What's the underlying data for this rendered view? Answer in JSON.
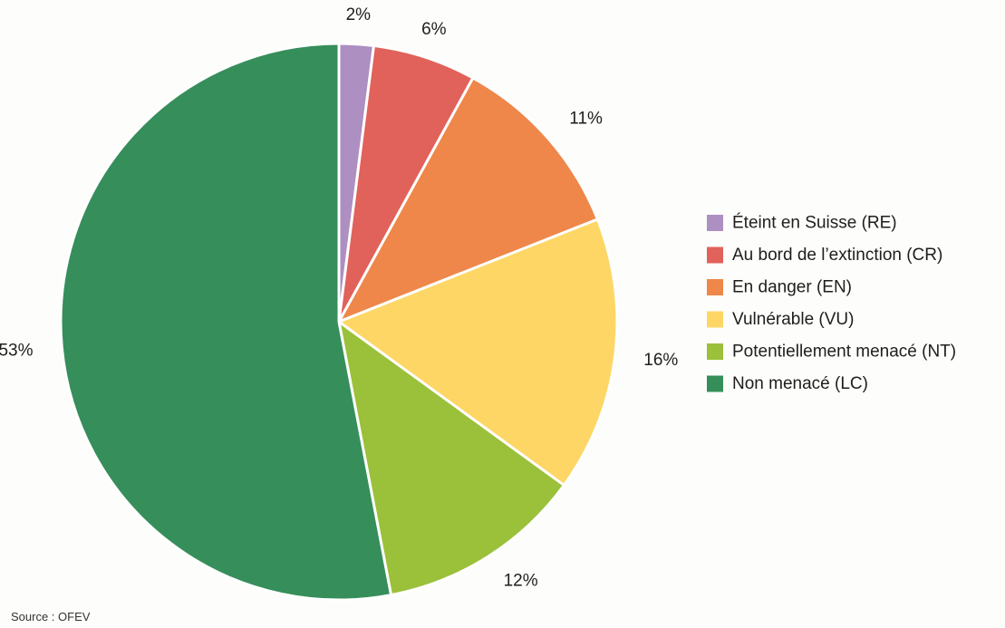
{
  "chart_data": {
    "type": "pie",
    "title": "",
    "unit": "%",
    "start_angle_deg": 0,
    "direction": "clockwise",
    "legend_position": "right",
    "slices": [
      {
        "label": "Éteint en Suisse (RE)",
        "value": 2,
        "value_label": "2%",
        "color": "#ad8fc2"
      },
      {
        "label": "Au bord de l’extinction (CR)",
        "value": 6,
        "value_label": "6%",
        "color": "#e0625a"
      },
      {
        "label": "En danger (EN)",
        "value": 11,
        "value_label": "11%",
        "color": "#ee8749"
      },
      {
        "label": "Vulnérable (VU)",
        "value": 16,
        "value_label": "16%",
        "color": "#fdd665"
      },
      {
        "label": "Potentiellement menacé (NT)",
        "value": 12,
        "value_label": "12%",
        "color": "#9bc03a"
      },
      {
        "label": "Non menacé (LC)",
        "value": 53,
        "value_label": "53%",
        "color": "#368e5a"
      }
    ]
  },
  "footer": {
    "source": "Source : OFEV"
  }
}
